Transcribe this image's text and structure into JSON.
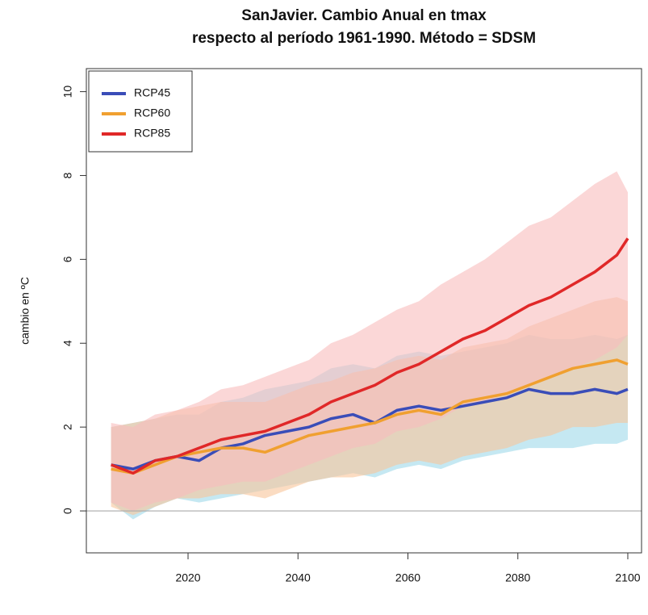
{
  "chart_data": {
    "type": "line",
    "title": "SanJavier. Cambio Anual en tmax",
    "subtitle": "respecto al período 1961-1990. Método = SDSM",
    "y_label": "cambio en ºC",
    "x": [
      2006,
      2010,
      2014,
      2018,
      2022,
      2026,
      2030,
      2034,
      2038,
      2042,
      2046,
      2050,
      2054,
      2058,
      2062,
      2066,
      2070,
      2074,
      2078,
      2082,
      2086,
      2090,
      2094,
      2098,
      2100
    ],
    "series": [
      {
        "name": "RCP45",
        "color": "#3a4db8",
        "band_color": "#9fd8ea",
        "values": [
          1.1,
          1.0,
          1.2,
          1.3,
          1.2,
          1.5,
          1.6,
          1.8,
          1.9,
          2.0,
          2.2,
          2.3,
          2.1,
          2.4,
          2.5,
          2.4,
          2.5,
          2.6,
          2.7,
          2.9,
          2.8,
          2.8,
          2.9,
          2.8,
          2.9
        ],
        "lower": [
          0.2,
          -0.2,
          0.1,
          0.3,
          0.2,
          0.3,
          0.4,
          0.5,
          0.6,
          0.7,
          0.8,
          0.9,
          0.8,
          1.0,
          1.1,
          1.0,
          1.2,
          1.3,
          1.4,
          1.5,
          1.5,
          1.5,
          1.6,
          1.6,
          1.7
        ],
        "upper": [
          2.0,
          2.1,
          2.2,
          2.3,
          2.3,
          2.6,
          2.7,
          2.9,
          3.0,
          3.1,
          3.4,
          3.5,
          3.4,
          3.7,
          3.8,
          3.7,
          3.8,
          3.9,
          4.0,
          4.2,
          4.1,
          4.1,
          4.2,
          4.1,
          4.2
        ]
      },
      {
        "name": "RCP60",
        "color": "#f0a030",
        "band_color": "#f8c49a",
        "values": [
          1.0,
          0.9,
          1.1,
          1.3,
          1.4,
          1.5,
          1.5,
          1.4,
          1.6,
          1.8,
          1.9,
          2.0,
          2.1,
          2.3,
          2.4,
          2.3,
          2.6,
          2.7,
          2.8,
          3.0,
          3.2,
          3.4,
          3.5,
          3.6,
          3.5
        ],
        "lower": [
          0.1,
          -0.1,
          0.1,
          0.3,
          0.3,
          0.4,
          0.4,
          0.3,
          0.5,
          0.7,
          0.8,
          0.8,
          0.9,
          1.1,
          1.2,
          1.1,
          1.3,
          1.4,
          1.5,
          1.7,
          1.8,
          2.0,
          2.0,
          2.1,
          2.1
        ],
        "upper": [
          2.0,
          2.1,
          2.2,
          2.4,
          2.5,
          2.6,
          2.6,
          2.6,
          2.8,
          3.0,
          3.1,
          3.3,
          3.4,
          3.6,
          3.7,
          3.6,
          3.9,
          4.0,
          4.1,
          4.4,
          4.6,
          4.8,
          5.0,
          5.1,
          5.0
        ]
      },
      {
        "name": "RCP85",
        "color": "#e02828",
        "band_color": "#f8bcbc",
        "values": [
          1.1,
          0.9,
          1.2,
          1.3,
          1.5,
          1.7,
          1.8,
          1.9,
          2.1,
          2.3,
          2.6,
          2.8,
          3.0,
          3.3,
          3.5,
          3.8,
          4.1,
          4.3,
          4.6,
          4.9,
          5.1,
          5.4,
          5.7,
          6.1,
          6.5
        ],
        "lower": [
          0.2,
          0.0,
          0.2,
          0.3,
          0.5,
          0.6,
          0.7,
          0.7,
          0.9,
          1.1,
          1.3,
          1.5,
          1.6,
          1.9,
          2.0,
          2.2,
          2.5,
          2.6,
          2.8,
          3.0,
          3.2,
          3.4,
          3.6,
          3.9,
          4.2
        ],
        "upper": [
          2.1,
          2.0,
          2.3,
          2.4,
          2.6,
          2.9,
          3.0,
          3.2,
          3.4,
          3.6,
          4.0,
          4.2,
          4.5,
          4.8,
          5.0,
          5.4,
          5.7,
          6.0,
          6.4,
          6.8,
          7.0,
          7.4,
          7.8,
          8.1,
          7.6
        ]
      }
    ],
    "xlim": [
      2001.5,
      2102.5
    ],
    "xticks": [
      2020,
      2040,
      2060,
      2080,
      2100
    ],
    "ylim": [
      -1.0,
      10.55
    ],
    "yticks": [
      0,
      2,
      4,
      6,
      8,
      10
    ],
    "zero_line": true,
    "legend": "top-left"
  }
}
